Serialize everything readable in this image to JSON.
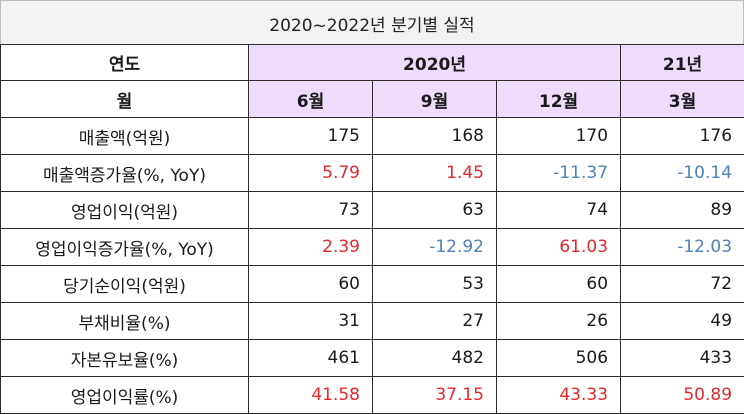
{
  "title": "2020~2022년 분기별 실적",
  "header": {
    "year_label": "연도",
    "year_2020": "2020년",
    "year_21": "21년",
    "month_label": "월",
    "months": [
      "6월",
      "9월",
      "12월",
      "3월"
    ]
  },
  "rows": [
    {
      "label": "매출액(억원)",
      "values": [
        "175",
        "168",
        "170",
        "176"
      ],
      "colors": [
        "dark",
        "dark",
        "dark",
        "dark"
      ]
    },
    {
      "label": "매출액증가율(%, YoY)",
      "values": [
        "5.79",
        "1.45",
        "-11.37",
        "-10.14"
      ],
      "colors": [
        "red",
        "red",
        "blue",
        "blue"
      ]
    },
    {
      "label": "영업이익(억원)",
      "values": [
        "73",
        "63",
        "74",
        "89"
      ],
      "colors": [
        "dark",
        "dark",
        "dark",
        "dark"
      ]
    },
    {
      "label": "영업이익증가율(%, YoY)",
      "values": [
        "2.39",
        "-12.92",
        "61.03",
        "-12.03"
      ],
      "colors": [
        "red",
        "blue",
        "red",
        "blue"
      ]
    },
    {
      "label": "당기순이익(억원)",
      "values": [
        "60",
        "53",
        "60",
        "72"
      ],
      "colors": [
        "dark",
        "dark",
        "dark",
        "dark"
      ]
    },
    {
      "label": "부채비율(%)",
      "values": [
        "31",
        "27",
        "26",
        "49"
      ],
      "colors": [
        "dark",
        "dark",
        "dark",
        "dark"
      ]
    },
    {
      "label": "자본유보율(%)",
      "values": [
        "461",
        "482",
        "506",
        "433"
      ],
      "colors": [
        "dark",
        "dark",
        "dark",
        "dark"
      ]
    },
    {
      "label": "영업이익률(%)",
      "values": [
        "41.58",
        "37.15",
        "43.33",
        "50.89"
      ],
      "colors": [
        "red",
        "red",
        "red",
        "red"
      ]
    }
  ],
  "colors": {
    "positive": "#e8262a",
    "negative": "#4f81bd",
    "header_fill": "#efdcfb",
    "title_fill": "#f2f2f2"
  }
}
